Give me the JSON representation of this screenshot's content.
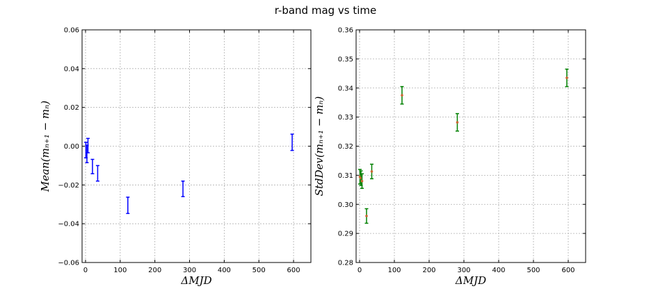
{
  "figure": {
    "title": "r-band mag vs time"
  },
  "chart_data": [
    {
      "type": "errorbar",
      "xlabel": "ΔMJD",
      "ylabel": "Mean(mₙ₊₁ − mₙ)",
      "xlim": [
        -10,
        650
      ],
      "ylim": [
        -0.06,
        0.06
      ],
      "xticks": [
        0,
        100,
        200,
        300,
        400,
        500,
        600
      ],
      "yticks": [
        -0.06,
        -0.04,
        -0.02,
        0.0,
        0.02,
        0.04,
        0.06
      ],
      "ytick_labels": [
        "−0.06",
        "−0.04",
        "−0.02",
        "0.00",
        "0.02",
        "0.04",
        "0.06"
      ],
      "grid": true,
      "color": "#0000ff",
      "marker": false,
      "points": [
        {
          "x": 1,
          "y": -0.002,
          "err": 0.004
        },
        {
          "x": 4,
          "y": -0.004,
          "err": 0.0045
        },
        {
          "x": 7,
          "y": 0.0003,
          "err": 0.0037
        },
        {
          "x": 20,
          "y": -0.0105,
          "err": 0.0037
        },
        {
          "x": 35,
          "y": -0.014,
          "err": 0.004
        },
        {
          "x": 122,
          "y": -0.0305,
          "err": 0.0042
        },
        {
          "x": 281,
          "y": -0.022,
          "err": 0.004
        },
        {
          "x": 596,
          "y": 0.002,
          "err": 0.0042
        }
      ]
    },
    {
      "type": "errorbar",
      "xlabel": "ΔMJD",
      "ylabel": "StdDev(mₙ₊₁ − mₙ)",
      "xlim": [
        -10,
        650
      ],
      "ylim": [
        0.28,
        0.36
      ],
      "xticks": [
        0,
        100,
        200,
        300,
        400,
        500,
        600
      ],
      "yticks": [
        0.28,
        0.29,
        0.3,
        0.31,
        0.32,
        0.33,
        0.34,
        0.35,
        0.36
      ],
      "ytick_labels": [
        "0.28",
        "0.29",
        "0.30",
        "0.31",
        "0.32",
        "0.33",
        "0.34",
        "0.35",
        "0.36"
      ],
      "grid": true,
      "color": "#008000",
      "marker": true,
      "points": [
        {
          "x": 1,
          "y": 0.3095,
          "err": 0.0025
        },
        {
          "x": 4,
          "y": 0.309,
          "err": 0.0025
        },
        {
          "x": 7,
          "y": 0.308,
          "err": 0.0025
        },
        {
          "x": 20,
          "y": 0.296,
          "err": 0.0025
        },
        {
          "x": 35,
          "y": 0.3113,
          "err": 0.0025
        },
        {
          "x": 122,
          "y": 0.3375,
          "err": 0.003
        },
        {
          "x": 281,
          "y": 0.3282,
          "err": 0.003
        },
        {
          "x": 596,
          "y": 0.3435,
          "err": 0.003
        }
      ]
    }
  ]
}
